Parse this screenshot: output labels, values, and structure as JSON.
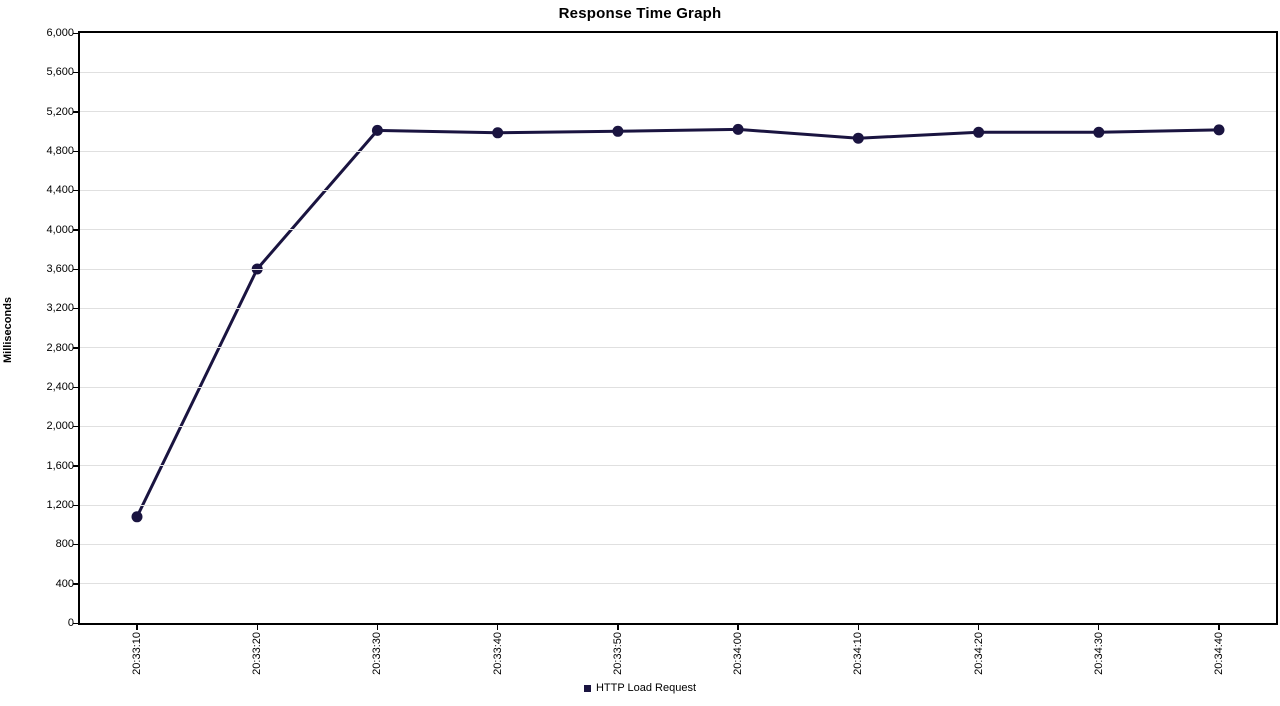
{
  "title": "Response Time Graph",
  "y_axis": {
    "title": "Milliseconds",
    "tick_labels": [
      "0",
      "400",
      "800",
      "1,200",
      "1,600",
      "2,000",
      "2,400",
      "2,800",
      "3,200",
      "3,600",
      "4,000",
      "4,400",
      "4,800",
      "5,200",
      "5,600",
      "6,000"
    ]
  },
  "legend": {
    "label": "HTTP Load Request"
  },
  "chart_data": {
    "type": "line",
    "title": "Response Time Graph",
    "xlabel": "",
    "ylabel": "Milliseconds",
    "ylim": [
      0,
      6000
    ],
    "ytick_step": 400,
    "yticks": [
      0,
      400,
      800,
      1200,
      1600,
      2000,
      2400,
      2800,
      3200,
      3600,
      4000,
      4400,
      4800,
      5200,
      5600,
      6000
    ],
    "ytick_labels": [
      "0",
      "400",
      "800",
      "1,200",
      "1,600",
      "2,000",
      "2,400",
      "2,800",
      "3,200",
      "3,600",
      "4,000",
      "4,400",
      "4,800",
      "5,200",
      "5,600",
      "6,000"
    ],
    "categories": [
      "20:33:10",
      "20:33:20",
      "20:33:30",
      "20:33:40",
      "20:33:50",
      "20:34:00",
      "20:34:10",
      "20:34:20",
      "20:34:30",
      "20:34:40"
    ],
    "series": [
      {
        "name": "HTTP Load Request",
        "values": [
          1080,
          3600,
          5010,
          4985,
          5000,
          5020,
          4930,
          4990,
          4990,
          5015
        ]
      }
    ],
    "grid": "horizontal",
    "legend_position": "bottom",
    "colors": {
      "line": "#1a1440",
      "marker": "#1a1440",
      "grid": "#e0e0e0",
      "border": "#000000",
      "background": "#ffffff",
      "text": "#000000"
    }
  }
}
